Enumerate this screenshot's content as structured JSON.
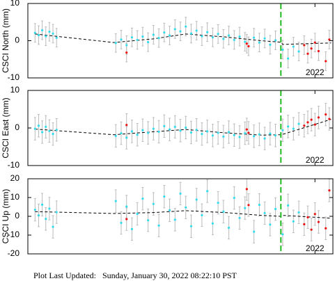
{
  "chart_data": [
    {
      "type": "scatter",
      "ylabel": "CSCI North (mm)",
      "xlim": [
        2014,
        2022.5
      ],
      "ylim": [
        -10,
        10
      ],
      "yticks": [
        -10,
        0,
        10
      ],
      "xticks": [
        2022
      ],
      "events": [
        2021.05
      ],
      "event_color": "#22bb22",
      "series": [
        {
          "color": "#33dded",
          "error": 2.5,
          "x": [
            2014.2,
            2014.3,
            2014.4,
            2014.5,
            2014.6,
            2014.7,
            2014.8,
            2016.45,
            2016.6,
            2016.75,
            2016.9,
            2017.05,
            2017.2,
            2017.35,
            2017.5,
            2017.65,
            2017.8,
            2017.95,
            2018.1,
            2018.25,
            2018.4,
            2018.55,
            2018.7,
            2018.85,
            2019.0,
            2019.15,
            2019.3,
            2019.45,
            2019.6,
            2019.75,
            2019.9,
            2020.05,
            2020.3,
            2020.45,
            2020.6,
            2020.75,
            2020.9,
            2021.1,
            2021.25,
            2021.4,
            2021.55
          ],
          "values": [
            2.1,
            1.5,
            2.8,
            1.2,
            2.4,
            1.9,
            0.8,
            -0.6,
            0.3,
            -1.2,
            0.9,
            0.2,
            1.1,
            -0.4,
            1.6,
            0.7,
            2.2,
            1.4,
            3.1,
            2.5,
            3.8,
            1.9,
            2.7,
            1.2,
            2.3,
            0.9,
            1.8,
            0.5,
            1.4,
            0.2,
            1.1,
            -0.3,
            0.8,
            -0.5,
            0.6,
            -1.1,
            0.1,
            -2.4,
            -4.8,
            -1.6,
            -2.9
          ]
        },
        {
          "color": "#ee1111",
          "error": 2.5,
          "x": [
            2016.75,
            2020.1,
            2020.15,
            2021.7,
            2021.8,
            2021.9,
            2022.0,
            2022.1,
            2022.3,
            2022.4
          ],
          "values": [
            -3.2,
            -0.8,
            -1.5,
            -1.2,
            -3.5,
            -2.1,
            -0.5,
            -2.8,
            -5.5,
            0.3
          ]
        }
      ],
      "model": {
        "x": [
          2014.2,
          2016.4,
          2017.5,
          2018.4,
          2019.5,
          2020.5,
          2021.05,
          2021.1,
          2022.45
        ],
        "values": [
          1.8,
          -0.5,
          0.5,
          1.8,
          1.0,
          0,
          -0.4,
          -1.0,
          -0.6
        ]
      }
    },
    {
      "type": "scatter",
      "ylabel": "CSCI East (mm)",
      "xlim": [
        2014,
        2022.5
      ],
      "ylim": [
        -10,
        10
      ],
      "yticks": [
        -10,
        0,
        10
      ],
      "xticks": [
        2022
      ],
      "events": [
        2021.05
      ],
      "event_color": "#22bb22",
      "series": [
        {
          "color": "#33dded",
          "error": 3,
          "x": [
            2014.2,
            2014.3,
            2014.4,
            2014.5,
            2014.6,
            2014.7,
            2014.8,
            2016.45,
            2016.6,
            2016.75,
            2016.9,
            2017.05,
            2017.2,
            2017.35,
            2017.5,
            2017.65,
            2017.8,
            2017.95,
            2018.1,
            2018.25,
            2018.4,
            2018.55,
            2018.7,
            2018.85,
            2019.0,
            2019.15,
            2019.3,
            2019.45,
            2019.6,
            2019.75,
            2019.9,
            2020.05,
            2020.3,
            2020.45,
            2020.6,
            2020.75,
            2020.9,
            2021.1,
            2021.25,
            2021.4,
            2021.55
          ],
          "values": [
            -0.2,
            0.6,
            -1.1,
            0.3,
            -0.8,
            -1.6,
            -0.5,
            -2.1,
            -1.4,
            -2.6,
            -0.9,
            -1.8,
            -0.6,
            -1.3,
            -0.2,
            -1.0,
            0.5,
            -0.4,
            0.3,
            -0.7,
            0.1,
            -1.2,
            -0.5,
            -1.6,
            -0.9,
            -2.0,
            -1.3,
            -2.3,
            -1.1,
            -1.9,
            -2.4,
            -1.4,
            -2.2,
            -1.7,
            -2.8,
            -1.5,
            -2.0,
            -0.6,
            0.4,
            -0.2,
            1.1
          ]
        },
        {
          "color": "#ee1111",
          "error": 3,
          "x": [
            2016.75,
            2020.1,
            2020.15,
            2021.7,
            2021.8,
            2021.9,
            2022.0,
            2022.1,
            2022.3,
            2022.4
          ],
          "values": [
            0.8,
            -0.4,
            -1.3,
            0.6,
            1.5,
            2.2,
            0.9,
            2.8,
            3.6,
            2.4
          ]
        }
      ],
      "model": {
        "x": [
          2014.2,
          2016.4,
          2017.5,
          2018.4,
          2019.5,
          2020.5,
          2021.05,
          2021.1,
          2022.45
        ],
        "values": [
          -0.3,
          -1.8,
          -1.0,
          -0.4,
          -1.3,
          -1.9,
          -1.8,
          -1.7,
          2.3
        ]
      }
    },
    {
      "type": "scatter",
      "ylabel": "CSCI Up (mm)",
      "xlim": [
        2014,
        2022.5
      ],
      "ylim": [
        -20,
        20
      ],
      "yticks": [
        -20,
        -10,
        0,
        10,
        20
      ],
      "xticks": [
        2022
      ],
      "events": [
        2021.05
      ],
      "event_color": "#22bb22",
      "series": [
        {
          "color": "#33dded",
          "error": 6,
          "x": [
            2014.2,
            2014.3,
            2014.4,
            2014.5,
            2014.6,
            2014.7,
            2014.8,
            2016.45,
            2016.6,
            2016.75,
            2016.9,
            2017.05,
            2017.2,
            2017.35,
            2017.5,
            2017.65,
            2017.8,
            2017.95,
            2018.1,
            2018.25,
            2018.4,
            2018.55,
            2018.7,
            2018.85,
            2019.0,
            2019.15,
            2019.3,
            2019.45,
            2019.6,
            2019.75,
            2019.9,
            2020.05,
            2020.3,
            2020.45,
            2020.6,
            2020.75,
            2020.9,
            2021.1,
            2021.25,
            2021.4,
            2021.55
          ],
          "values": [
            3.5,
            0.5,
            6.2,
            -1.4,
            4.1,
            -5.6,
            2.2,
            8.1,
            -3.5,
            5.2,
            -6.8,
            1.3,
            9.4,
            -2.1,
            6.6,
            -4.9,
            10.5,
            3.2,
            -1.8,
            12.1,
            4.7,
            -5.3,
            8.9,
            0.6,
            13.4,
            -3.8,
            7.2,
            2.5,
            -6.1,
            9.8,
            -0.9,
            4.4,
            -8.2,
            6.1,
            1.7,
            -4.4,
            3.9,
            -9.6,
            5.8,
            -2.7,
            2.1
          ]
        },
        {
          "color": "#ee1111",
          "error": 6,
          "x": [
            2016.75,
            2020.1,
            2020.15,
            2021.7,
            2021.8,
            2021.9,
            2022.0,
            2022.1,
            2022.3,
            2022.4
          ],
          "values": [
            -1.5,
            14.5,
            6.0,
            -4.2,
            -0.5,
            -7.1,
            1.2,
            -3.0,
            -6.4,
            13.8
          ]
        }
      ],
      "model": {
        "x": [
          2014.2,
          2016.4,
          2017.5,
          2018.4,
          2019.5,
          2020.5,
          2021.05,
          2021.1,
          2022.45
        ],
        "values": [
          2.5,
          1.5,
          2.0,
          3.0,
          2.0,
          0.5,
          0.0,
          0.5,
          -1.0
        ]
      }
    }
  ],
  "footer": "Plot Last Updated:   Sunday, January 30, 2022 08:22:10 PST"
}
